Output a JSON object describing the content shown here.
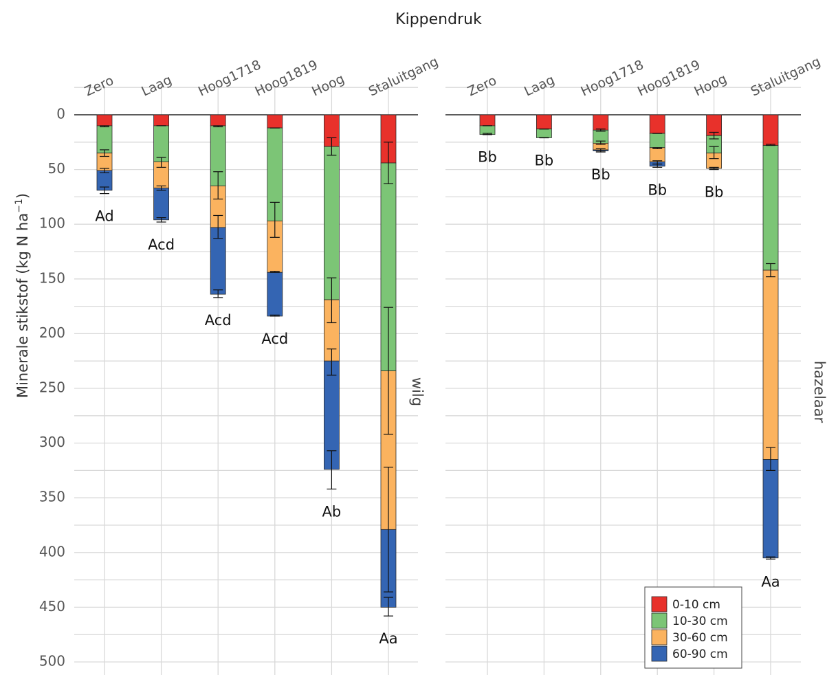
{
  "chart_data": {
    "type": "bar",
    "title": "Kippendruk",
    "ylabel": "Minerale stikstof (kg N ha",
    "ylabel_sup": "−1",
    "ylabel_close": ")",
    "ylim": [
      0,
      500
    ],
    "y_reversed": true,
    "y_ticks": [
      0,
      50,
      100,
      150,
      200,
      250,
      300,
      350,
      400,
      450,
      500
    ],
    "categories": [
      "Zero",
      "Laag",
      "Hoog1718",
      "Hoog1819",
      "Hoog",
      "Staluitgang"
    ],
    "stacked": true,
    "grid": true,
    "legend": {
      "position": "bottom-right",
      "entries": [
        "0-10 cm",
        "10-30 cm",
        "30-60 cm",
        "60-90 cm"
      ]
    },
    "colors": {
      "0-10 cm": "#e8312b",
      "10-30 cm": "#7cc576",
      "30-60 cm": "#fbb35f",
      "60-90 cm": "#3465b3"
    },
    "panels": [
      {
        "name": "wilg",
        "series": [
          {
            "name": "0-10 cm",
            "values": [
              10,
              10,
              10,
              12,
              29,
              44
            ],
            "errors": [
              [
                10,
                11
              ],
              [
                10,
                10
              ],
              [
                10,
                11
              ],
              [
                12,
                12
              ],
              [
                21,
                37
              ],
              [
                25,
                63
              ]
            ]
          },
          {
            "name": "10-30 cm",
            "values": [
              25,
              33,
              55,
              85,
              140,
              190
            ],
            "errors": [
              [
                32,
                38
              ],
              [
                39,
                48
              ],
              [
                52,
                77
              ],
              [
                80,
                112
              ],
              [
                149,
                190
              ],
              [
                176,
                292
              ]
            ]
          },
          {
            "name": "30-60 cm",
            "values": [
              16,
              24,
              38,
              47,
              56,
              145
            ],
            "errors": [
              [
                49,
                53
              ],
              [
                65,
                69
              ],
              [
                92,
                113
              ],
              [
                143,
                144
              ],
              [
                214,
                238
              ],
              [
                322,
                436
              ]
            ]
          },
          {
            "name": "60-90 cm",
            "values": [
              18,
              29,
              61,
              40,
              99,
              71
            ],
            "errors": [
              [
                66,
                72
              ],
              [
                94,
                98
              ],
              [
                160,
                167
              ],
              [
                183,
                184
              ],
              [
                307,
                342
              ],
              [
                441,
                458
              ]
            ]
          }
        ],
        "labels": [
          "Ad",
          "Acd",
          "Acd",
          "Acd",
          "Ab",
          "Aa"
        ]
      },
      {
        "name": "hazelaar",
        "series": [
          {
            "name": "0-10 cm",
            "values": [
              10,
              13,
              14,
              17,
              19,
              28
            ],
            "errors": [
              [
                10,
                10
              ],
              [
                13,
                13
              ],
              [
                13,
                15
              ],
              [
                17,
                17
              ],
              [
                16,
                22
              ],
              [
                27,
                28
              ]
            ]
          },
          {
            "name": "10-30 cm",
            "values": [
              8,
              8,
              12,
              13,
              16,
              114
            ],
            "errors": [
              [
                17,
                18
              ],
              [
                21,
                21
              ],
              [
                24,
                27
              ],
              [
                30,
                31
              ],
              [
                29,
                40
              ],
              [
                136,
                148
              ]
            ]
          },
          {
            "name": "30-60 cm",
            "values": [
              0,
              0,
              6,
              13,
              14,
              173
            ],
            "errors": [
              [
                18,
                18
              ],
              [
                21,
                21
              ],
              [
                31,
                34
              ],
              [
                42,
                45
              ],
              [
                48,
                50
              ],
              [
                304,
                325
              ]
            ]
          },
          {
            "name": "60-90 cm",
            "values": [
              0,
              0,
              1,
              4,
              0,
              90
            ],
            "errors": [
              [
                18,
                18
              ],
              [
                21,
                21
              ],
              [
                33,
                33
              ],
              [
                45,
                48
              ],
              [
                49,
                49
              ],
              [
                404,
                406
              ]
            ]
          }
        ],
        "labels": [
          "Bb",
          "Bb",
          "Bb",
          "Bb",
          "Bb",
          "Aa"
        ]
      }
    ]
  }
}
